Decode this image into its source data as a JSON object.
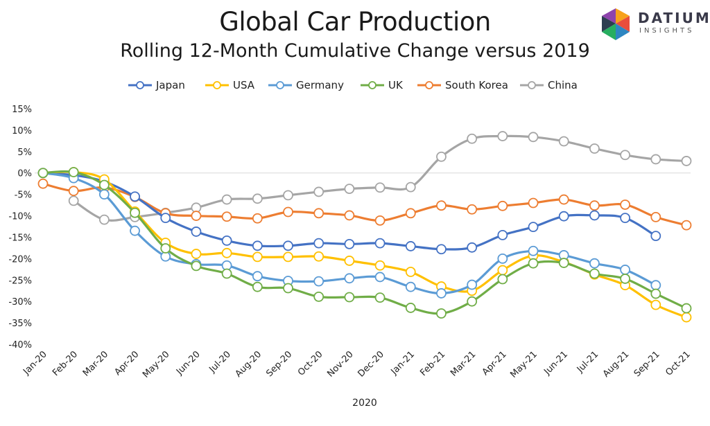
{
  "chart_data": {
    "type": "line",
    "title": "Global Car Production",
    "subtitle": "Rolling 12-Month Cumulative Change versus 2019",
    "xlabel": "2020",
    "ylabel": "",
    "x": [
      "Jan-20",
      "Feb-20",
      "Mar-20",
      "Apr-20",
      "May-20",
      "Jun-20",
      "Jul-20",
      "Aug-20",
      "Sep-20",
      "Oct-20",
      "Nov-20",
      "Dec-20",
      "Jan-21",
      "Feb-21",
      "Mar-21",
      "Apr-21",
      "May-21",
      "Jun-21",
      "Jul-21",
      "Aug-21",
      "Sep-21",
      "Oct-21"
    ],
    "y_ticks": [
      "15%",
      "10%",
      "5%",
      "0%",
      "-5%",
      "-10%",
      "-15%",
      "-20%",
      "-25%",
      "-30%",
      "-35%",
      "-40%"
    ],
    "ylim": [
      -40,
      15
    ],
    "grid": false,
    "zero_line": true,
    "legend_position": "top",
    "series": [
      {
        "name": "Japan",
        "color": "#4472C4",
        "values": [
          0,
          -0.5,
          -2,
          -5.5,
          -10.5,
          -13.7,
          -15.8,
          -17,
          -17,
          -16.4,
          -16.6,
          -16.4,
          -17.1,
          -17.8,
          -17.4,
          -14.5,
          -12.6,
          -10.1,
          -9.9,
          -10.5,
          -14.7,
          null
        ]
      },
      {
        "name": "USA",
        "color": "#FFC000",
        "values": [
          0,
          0.2,
          -1.5,
          -9,
          -16.3,
          -18.9,
          -18.7,
          -19.6,
          -19.6,
          -19.5,
          -20.5,
          -21.6,
          -23.1,
          -26.5,
          -27.5,
          -22.7,
          -19.3,
          -20.8,
          -23.7,
          -26.2,
          -30.8,
          -33.7
        ]
      },
      {
        "name": "Germany",
        "color": "#5B9BD5",
        "values": [
          0,
          -1.2,
          -5,
          -13.5,
          -19.5,
          -21.3,
          -21.6,
          -24.1,
          -25.2,
          -25.3,
          -24.6,
          -24.3,
          -26.6,
          -28.1,
          -26.1,
          -20,
          -18.2,
          -19.2,
          -21.1,
          -22.6,
          -26.2,
          null
        ]
      },
      {
        "name": "UK",
        "color": "#70AD47",
        "values": [
          0,
          0.2,
          -2.8,
          -9.3,
          -17.6,
          -21.7,
          -23.5,
          -26.6,
          -26.9,
          -28.9,
          -29,
          -29.1,
          -31.5,
          -32.8,
          -30,
          -24.8,
          -21.1,
          -21,
          -23.5,
          -24.7,
          -28.2,
          -31.6
        ]
      },
      {
        "name": "South Korea",
        "color": "#ED7D31",
        "values": [
          -2.5,
          -4.2,
          -3.4,
          -5.6,
          -9.4,
          -10,
          -10.2,
          -10.6,
          -9.1,
          -9.4,
          -9.9,
          -11.1,
          -9.4,
          -7.6,
          -8.5,
          -7.7,
          -7,
          -6.2,
          -7.6,
          -7.4,
          -10.3,
          -12.2
        ]
      },
      {
        "name": "China",
        "color": "#A5A5A5",
        "values": [
          null,
          -6.5,
          -10.9,
          -10.3,
          -9.3,
          -8.1,
          -6.2,
          -6,
          -5.2,
          -4.4,
          -3.7,
          -3.4,
          -3.3,
          3.8,
          8,
          8.6,
          8.4,
          7.4,
          5.7,
          4.2,
          3.2,
          2.8
        ]
      }
    ]
  },
  "logo": {
    "name": "DATIUM",
    "sub": "INSIGHTS"
  }
}
